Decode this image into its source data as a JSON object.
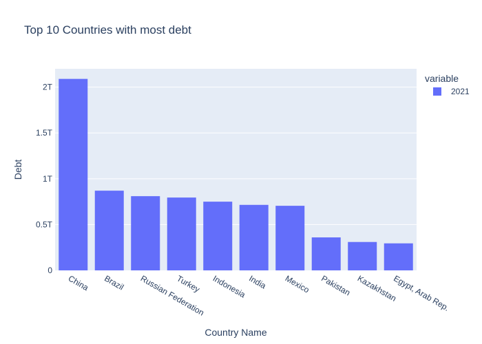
{
  "chart_data": {
    "type": "bar",
    "title": "Top 10 Countries with most debt",
    "xlabel": "Country Name",
    "ylabel": "Debt",
    "categories": [
      "China",
      "Brazil",
      "Russian Federation",
      "Turkey",
      "Indonesia",
      "India",
      "Mexico",
      "Pakistan",
      "Kazakhstan",
      "Egypt, Arab Rep."
    ],
    "series": [
      {
        "name": "2021",
        "values": [
          2090000000000,
          870000000000,
          810000000000,
          795000000000,
          750000000000,
          715000000000,
          705000000000,
          360000000000,
          310000000000,
          295000000000
        ]
      }
    ],
    "ylim": [
      0,
      2200000000000
    ],
    "yticks": [
      0,
      500000000000,
      1000000000000,
      1500000000000,
      2000000000000
    ],
    "ytick_labels": [
      "0",
      "0.5T",
      "1T",
      "1.5T",
      "2T"
    ],
    "legend": {
      "title": "variable",
      "placement": "top-right"
    },
    "grid": true,
    "colors": {
      "bar": "#636efa",
      "plot_bg": "#e5ecf6",
      "grid": "#ffffff",
      "text": "#2a3f5f"
    }
  }
}
